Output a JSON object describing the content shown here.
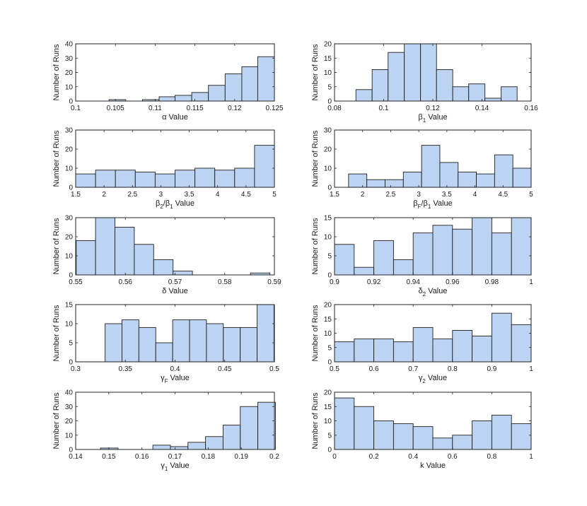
{
  "colors": {
    "bar_fill": "#bcd3f2",
    "bar_edge": "#1f1f1f",
    "axis": "#222222",
    "background": "#ffffff"
  },
  "chart_data": [
    {
      "type": "bar",
      "ylabel": "Number of Runs",
      "xlabel": {
        "symbol": "α",
        "sub": "",
        "suffix": " Value"
      },
      "xlim": [
        0.1,
        0.125
      ],
      "ylim": [
        0,
        40
      ],
      "xticks": [
        0.1,
        0.105,
        0.11,
        0.115,
        0.12,
        0.125
      ],
      "xtick_labels": [
        "0.1",
        "0.105",
        "0.11",
        "0.115",
        "0.12",
        "0.125"
      ],
      "yticks": [
        0,
        10,
        20,
        30,
        40
      ],
      "ytick_labels": [
        "0",
        "10",
        "20",
        "30",
        "40"
      ],
      "bin_edges": [
        0.1042,
        0.1063,
        0.1084,
        0.1105,
        0.1125,
        0.1146,
        0.1167,
        0.1188,
        0.1209,
        0.1229,
        0.125
      ],
      "values": [
        1,
        0,
        1,
        3,
        4,
        6,
        11,
        19,
        24,
        31
      ]
    },
    {
      "type": "bar",
      "ylabel": "Number of Runs",
      "xlabel": {
        "symbol": "β",
        "sub": "1",
        "suffix": " Value"
      },
      "xlim": [
        0.08,
        0.16
      ],
      "ylim": [
        0,
        20
      ],
      "xticks": [
        0.08,
        0.1,
        0.12,
        0.14,
        0.16
      ],
      "xtick_labels": [
        "0.08",
        "0.1",
        "0.12",
        "0.14",
        "0.16"
      ],
      "yticks": [
        0,
        5,
        10,
        15,
        20
      ],
      "ytick_labels": [
        "0",
        "5",
        "10",
        "15",
        "20"
      ],
      "bin_edges": [
        0.0887,
        0.0953,
        0.1018,
        0.1084,
        0.115,
        0.1215,
        0.1281,
        0.1346,
        0.1412,
        0.1478,
        0.1543
      ],
      "values": [
        4,
        11,
        17,
        20,
        20,
        11,
        5,
        6,
        1,
        5
      ]
    },
    {
      "type": "bar",
      "ylabel": "Number of Runs",
      "xlabel": {
        "symbol": "β",
        "sub": "2",
        "between": "/β",
        "sub2": "1",
        "suffix": " Value"
      },
      "xlim": [
        1.5,
        5
      ],
      "ylim": [
        0,
        30
      ],
      "xticks": [
        1.5,
        2,
        2.5,
        3,
        3.5,
        4,
        4.5,
        5
      ],
      "xtick_labels": [
        "1.5",
        "2",
        "2.5",
        "3",
        "3.5",
        "4",
        "4.5",
        "5"
      ],
      "yticks": [
        0,
        10,
        20,
        30
      ],
      "ytick_labels": [
        "0",
        "10",
        "20",
        "30"
      ],
      "bin_edges": [
        1.5,
        1.85,
        2.2,
        2.55,
        2.9,
        3.25,
        3.6,
        3.95,
        4.3,
        4.65,
        5.0
      ],
      "values": [
        7,
        9,
        9,
        8,
        7,
        9,
        10,
        9,
        10,
        22
      ]
    },
    {
      "type": "bar",
      "ylabel": "Number of Runs",
      "xlabel": {
        "symbol": "β",
        "sub": "F",
        "between": "/β",
        "sub2": "1",
        "suffix": " Value"
      },
      "xlim": [
        1.5,
        5
      ],
      "ylim": [
        0,
        30
      ],
      "xticks": [
        1.5,
        2,
        2.5,
        3,
        3.5,
        4,
        4.5,
        5
      ],
      "xtick_labels": [
        "1.5",
        "2",
        "2.5",
        "3",
        "3.5",
        "4",
        "4.5",
        "5"
      ],
      "yticks": [
        0,
        10,
        20,
        30
      ],
      "ytick_labels": [
        "0",
        "10",
        "20",
        "30"
      ],
      "bin_edges": [
        1.75,
        2.075,
        2.4,
        2.725,
        3.05,
        3.375,
        3.7,
        4.025,
        4.35,
        4.675,
        5.0
      ],
      "values": [
        7,
        4,
        4,
        8,
        22,
        13,
        8,
        7,
        17,
        10
      ]
    },
    {
      "type": "bar",
      "ylabel": "Number of Runs",
      "xlabel": {
        "symbol": "δ",
        "sub": "",
        "suffix": " Value"
      },
      "xlim": [
        0.55,
        0.59
      ],
      "ylim": [
        0,
        30
      ],
      "xticks": [
        0.55,
        0.56,
        0.57,
        0.58,
        0.59
      ],
      "xtick_labels": [
        "0.55",
        "0.56",
        "0.57",
        "0.58",
        "0.59"
      ],
      "yticks": [
        0,
        10,
        20,
        30
      ],
      "ytick_labels": [
        "0",
        "10",
        "20",
        "30"
      ],
      "bin_edges": [
        0.5501,
        0.554,
        0.5579,
        0.5618,
        0.5657,
        0.5696,
        0.5735,
        0.5774,
        0.5813,
        0.5852,
        0.5891
      ],
      "values": [
        18,
        30,
        25,
        16,
        8,
        2,
        0,
        0,
        0,
        1
      ]
    },
    {
      "type": "bar",
      "ylabel": "Number of Runs",
      "xlabel": {
        "symbol": "δ",
        "sub": "2",
        "suffix": " Value"
      },
      "xlim": [
        0.9,
        1
      ],
      "ylim": [
        0,
        15
      ],
      "xticks": [
        0.9,
        0.92,
        0.94,
        0.96,
        0.98,
        1
      ],
      "xtick_labels": [
        "0.9",
        "0.92",
        "0.94",
        "0.96",
        "0.98",
        "1"
      ],
      "yticks": [
        0,
        5,
        10,
        15
      ],
      "ytick_labels": [
        "0",
        "5",
        "10",
        "15"
      ],
      "bin_edges": [
        0.9,
        0.91,
        0.92,
        0.93,
        0.94,
        0.95,
        0.96,
        0.97,
        0.98,
        0.99,
        1.0
      ],
      "values": [
        8,
        2,
        9,
        4,
        11,
        13,
        12,
        15,
        11,
        15
      ]
    },
    {
      "type": "bar",
      "ylabel": "Number of Runs",
      "xlabel": {
        "symbol": "γ",
        "sub": "F",
        "suffix": " Value"
      },
      "xlim": [
        0.3,
        0.5
      ],
      "ylim": [
        0,
        15
      ],
      "xticks": [
        0.3,
        0.35,
        0.4,
        0.45,
        0.5
      ],
      "xtick_labels": [
        "0.3",
        "0.35",
        "0.4",
        "0.45",
        "0.5"
      ],
      "yticks": [
        0,
        5,
        10,
        15
      ],
      "ytick_labels": [
        "0",
        "5",
        "10",
        "15"
      ],
      "bin_edges": [
        0.3296,
        0.3466,
        0.3636,
        0.3806,
        0.3976,
        0.4146,
        0.4316,
        0.4486,
        0.4656,
        0.4826,
        0.4996
      ],
      "values": [
        10,
        11,
        9,
        5,
        11,
        11,
        10,
        9,
        9,
        15
      ]
    },
    {
      "type": "bar",
      "ylabel": "Number of Runs",
      "xlabel": {
        "symbol": "γ",
        "sub": "2",
        "suffix": " Value"
      },
      "xlim": [
        0.5,
        1
      ],
      "ylim": [
        0,
        20
      ],
      "xticks": [
        0.5,
        0.6,
        0.7,
        0.8,
        0.9,
        1
      ],
      "xtick_labels": [
        "0.5",
        "0.6",
        "0.7",
        "0.8",
        "0.9",
        "1"
      ],
      "yticks": [
        0,
        5,
        10,
        15,
        20
      ],
      "ytick_labels": [
        "0",
        "5",
        "10",
        "15",
        "20"
      ],
      "bin_edges": [
        0.5,
        0.55,
        0.6,
        0.65,
        0.7,
        0.75,
        0.8,
        0.85,
        0.9,
        0.95,
        1.0
      ],
      "values": [
        7,
        8,
        8,
        7,
        12,
        8,
        11,
        9,
        17,
        13
      ]
    },
    {
      "type": "bar",
      "ylabel": "Number of Runs",
      "xlabel": {
        "symbol": "γ",
        "sub": "1",
        "suffix": " Value"
      },
      "xlim": [
        0.14,
        0.2
      ],
      "ylim": [
        0,
        40
      ],
      "xticks": [
        0.14,
        0.15,
        0.16,
        0.17,
        0.18,
        0.19,
        0.2
      ],
      "xtick_labels": [
        "0.14",
        "0.15",
        "0.16",
        "0.17",
        "0.18",
        "0.19",
        "0.2"
      ],
      "yticks": [
        0,
        10,
        20,
        30,
        40
      ],
      "ytick_labels": [
        "0",
        "10",
        "20",
        "30",
        "40"
      ],
      "bin_edges": [
        0.1475,
        0.1528,
        0.1581,
        0.1633,
        0.1686,
        0.1739,
        0.1792,
        0.1845,
        0.1897,
        0.195,
        0.2003
      ],
      "values": [
        1,
        0,
        0,
        3,
        2,
        5,
        9,
        17,
        30,
        33
      ]
    },
    {
      "type": "bar",
      "ylabel": "Number of Runs",
      "xlabel": {
        "symbol": "k",
        "sub": "",
        "suffix": " Value"
      },
      "xlim": [
        0,
        1
      ],
      "ylim": [
        0,
        20
      ],
      "xticks": [
        0,
        0.2,
        0.4,
        0.6,
        0.8,
        1
      ],
      "xtick_labels": [
        "0",
        "0.2",
        "0.4",
        "0.6",
        "0.8",
        "1"
      ],
      "yticks": [
        0,
        5,
        10,
        15,
        20
      ],
      "ytick_labels": [
        "0",
        "5",
        "10",
        "15",
        "20"
      ],
      "bin_edges": [
        0,
        0.1,
        0.2,
        0.3,
        0.4,
        0.5,
        0.6,
        0.7,
        0.8,
        0.9,
        1.0
      ],
      "values": [
        18,
        15,
        10,
        9,
        8,
        4,
        5,
        10,
        12,
        9
      ]
    }
  ]
}
